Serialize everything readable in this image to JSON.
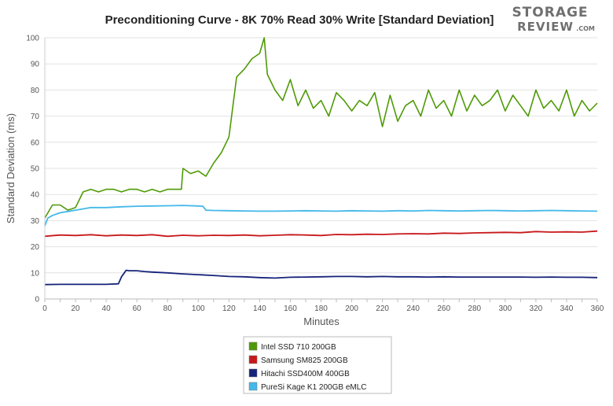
{
  "chart_data": {
    "type": "line",
    "title": "Preconditioning Curve - 8K 70% Read 30% Write [Standard Deviation]",
    "xlabel": "Minutes",
    "ylabel": "Standard Deviation (ms)",
    "xlim": [
      0,
      360
    ],
    "ylim": [
      0,
      100
    ],
    "xticks": [
      "0",
      "10",
      "20",
      "30",
      "40",
      "50",
      "60",
      "70",
      "80",
      "90",
      "100",
      "110",
      "120",
      "130",
      "140",
      "150",
      "160",
      "170",
      "180",
      "190",
      "200",
      "210",
      "220",
      "230",
      "240",
      "250",
      "260",
      "270",
      "280",
      "290",
      "300",
      "310",
      "320",
      "330",
      "340",
      "350",
      "360"
    ],
    "yticks": [
      "0",
      "10",
      "20",
      "30",
      "40",
      "50",
      "60",
      "70",
      "80",
      "90",
      "100"
    ],
    "grid": "horizontal",
    "legend_position": "bottom-center",
    "series": [
      {
        "name": "Intel SSD 710 200GB",
        "color": "#4e9a06",
        "x": [
          0,
          5,
          10,
          15,
          20,
          25,
          30,
          35,
          40,
          45,
          50,
          55,
          60,
          65,
          70,
          75,
          80,
          85,
          89,
          90,
          95,
          100,
          105,
          110,
          115,
          120,
          125,
          130,
          135,
          140,
          143,
          145,
          150,
          155,
          160,
          165,
          170,
          175,
          180,
          185,
          190,
          195,
          200,
          205,
          210,
          215,
          220,
          225,
          230,
          235,
          240,
          245,
          250,
          255,
          260,
          265,
          270,
          275,
          280,
          285,
          290,
          295,
          300,
          305,
          310,
          315,
          320,
          325,
          330,
          335,
          340,
          345,
          350,
          355,
          360
        ],
        "values": [
          31,
          36,
          36,
          34,
          35,
          41,
          42,
          41,
          42,
          42,
          41,
          42,
          42,
          41,
          42,
          41,
          42,
          42,
          42,
          50,
          48,
          49,
          47,
          52,
          56,
          62,
          85,
          88,
          92,
          94,
          100,
          86,
          80,
          76,
          84,
          74,
          80,
          73,
          76,
          70,
          79,
          76,
          72,
          76,
          74,
          79,
          66,
          78,
          68,
          74,
          76,
          70,
          80,
          73,
          76,
          70,
          80,
          72,
          78,
          74,
          76,
          80,
          72,
          78,
          74,
          70,
          80,
          73,
          76,
          72,
          80,
          70,
          76,
          72,
          75
        ]
      },
      {
        "name": "Samsung SM825 200GB",
        "color": "#c8191c",
        "x": [
          0,
          10,
          20,
          30,
          40,
          50,
          60,
          70,
          80,
          90,
          100,
          110,
          120,
          130,
          140,
          150,
          160,
          170,
          180,
          190,
          200,
          210,
          220,
          230,
          240,
          250,
          260,
          270,
          280,
          290,
          300,
          310,
          320,
          330,
          340,
          350,
          360
        ],
        "values": [
          24,
          24.5,
          24.3,
          24.6,
          24.2,
          24.5,
          24.3,
          24.6,
          24,
          24.4,
          24.2,
          24.4,
          24.3,
          24.5,
          24.2,
          24.4,
          24.6,
          24.5,
          24.3,
          24.7,
          24.6,
          24.8,
          24.7,
          24.9,
          25,
          24.9,
          25.2,
          25.1,
          25.3,
          25.4,
          25.5,
          25.4,
          25.8,
          25.6,
          25.7,
          25.6,
          26
        ]
      },
      {
        "name": "Hitachi SSD400M 400GB",
        "color": "#16237a",
        "x": [
          0,
          10,
          20,
          30,
          40,
          48,
          50,
          53,
          55,
          60,
          65,
          70,
          80,
          90,
          100,
          110,
          120,
          130,
          140,
          150,
          160,
          170,
          180,
          190,
          200,
          210,
          220,
          230,
          240,
          250,
          260,
          270,
          280,
          290,
          300,
          310,
          320,
          330,
          340,
          350,
          360
        ],
        "values": [
          5.5,
          5.6,
          5.6,
          5.6,
          5.6,
          5.8,
          8.5,
          11,
          10.8,
          10.8,
          10.5,
          10.3,
          10,
          9.6,
          9.3,
          9,
          8.6,
          8.5,
          8.2,
          8,
          8.3,
          8.4,
          8.5,
          8.6,
          8.6,
          8.5,
          8.6,
          8.5,
          8.5,
          8.4,
          8.5,
          8.4,
          8.4,
          8.4,
          8.4,
          8.4,
          8.3,
          8.4,
          8.3,
          8.3,
          8.2
        ]
      },
      {
        "name": "PureSi Kage K1 200GB eMLC",
        "color": "#44b8ea",
        "x": [
          0,
          2,
          5,
          10,
          15,
          20,
          25,
          30,
          40,
          50,
          60,
          70,
          80,
          90,
          100,
          103,
          105,
          110,
          120,
          130,
          140,
          150,
          160,
          170,
          180,
          190,
          200,
          210,
          220,
          230,
          240,
          250,
          260,
          270,
          280,
          290,
          300,
          310,
          320,
          330,
          340,
          350,
          360
        ],
        "values": [
          28,
          31,
          32,
          33,
          33.5,
          34,
          34.5,
          35,
          35,
          35.3,
          35.5,
          35.6,
          35.7,
          35.8,
          35.6,
          35.5,
          34,
          33.9,
          33.8,
          33.7,
          33.6,
          33.6,
          33.7,
          33.8,
          33.7,
          33.6,
          33.8,
          33.7,
          33.6,
          33.8,
          33.7,
          33.9,
          33.8,
          33.7,
          33.8,
          33.9,
          33.8,
          33.7,
          33.8,
          33.9,
          33.8,
          33.7,
          33.6
        ]
      }
    ]
  },
  "logo": {
    "top": "STORAGE",
    "bottom": "REVIEW",
    "suffix": ".COM"
  }
}
